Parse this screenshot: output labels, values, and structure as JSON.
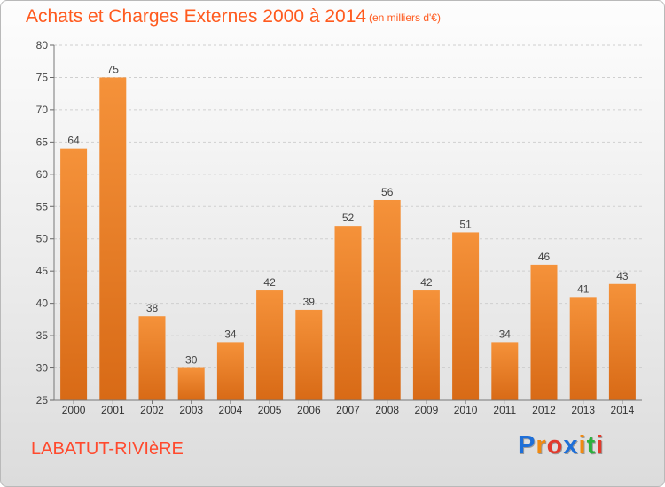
{
  "header": {
    "title": "Achats et Charges Externes 2000 à 2014",
    "subtitle": "(en milliers d'€)"
  },
  "footer": {
    "commune": "LABATUT-RIVIèRE",
    "brand": "Proxiti",
    "brand_letters": [
      "P",
      "r",
      "o",
      "x",
      "i",
      "t",
      "i"
    ],
    "brand_colors": [
      "#1e6fd8",
      "#f08a12",
      "#e23a2c",
      "#1e6fd8",
      "#f08a12",
      "#2bb13c",
      "#e23a2c"
    ]
  },
  "chart_data": {
    "type": "bar",
    "title": "Achats et Charges Externes 2000 à 2014",
    "subtitle": "(en milliers d'€)",
    "categories": [
      "2000",
      "2001",
      "2002",
      "2003",
      "2004",
      "2005",
      "2006",
      "2007",
      "2008",
      "2009",
      "2010",
      "2011",
      "2012",
      "2013",
      "2014"
    ],
    "values": [
      64,
      75,
      38,
      30,
      34,
      42,
      39,
      52,
      56,
      42,
      51,
      34,
      46,
      41,
      43
    ],
    "ylim": [
      25,
      80
    ],
    "yticks": [
      25,
      30,
      35,
      40,
      45,
      50,
      55,
      60,
      65,
      70,
      75,
      80
    ],
    "grid": true,
    "bar_color": "#f5923a",
    "bar_color_dark": "#d86a16"
  }
}
